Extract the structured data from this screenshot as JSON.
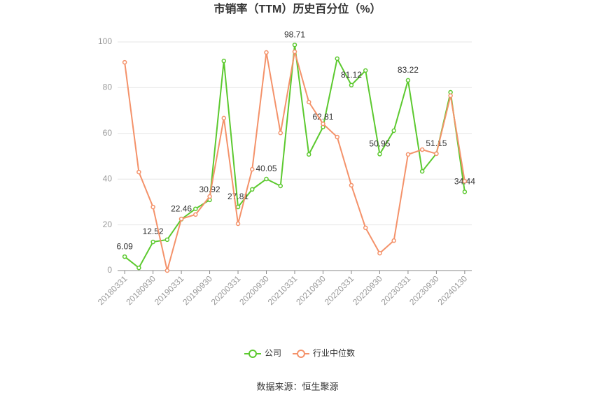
{
  "chart_data": {
    "type": "line",
    "title": "市销率（TTM）历史百分位（%）",
    "source": "数据来源：恒生聚源",
    "categories": [
      "20180331",
      null,
      "20180930",
      null,
      "20190331",
      null,
      "20190930",
      null,
      "20200331",
      null,
      "20200930",
      null,
      "20210331",
      null,
      "20210930",
      null,
      "20220331",
      null,
      "20220930",
      null,
      "20230331",
      null,
      "20230930",
      null,
      "20240130"
    ],
    "series": [
      {
        "name": "公司",
        "color": "#5cc92f",
        "values": [
          6.09,
          1.2,
          12.52,
          13.5,
          22.46,
          27,
          30.92,
          91.7,
          27.81,
          35.5,
          40.05,
          37,
          98.71,
          50.8,
          62.81,
          92.7,
          81.12,
          87.5,
          50.95,
          61.2,
          83.22,
          43.4,
          51.15,
          78,
          34.44
        ]
      },
      {
        "name": "行业中位数",
        "color": "#f4926a",
        "values": [
          91.1,
          43.1,
          27.8,
          0,
          22.6,
          24.5,
          32.4,
          66.7,
          20.5,
          44.3,
          95.4,
          60.2,
          95.7,
          73.7,
          64.2,
          58.4,
          37.3,
          18.7,
          7.6,
          13.1,
          50.8,
          52.9,
          51.1,
          76.5,
          39.1
        ]
      }
    ],
    "ylim": [
      0,
      100
    ],
    "yticks": [
      0,
      20,
      40,
      60,
      80,
      100
    ],
    "grid": true
  }
}
